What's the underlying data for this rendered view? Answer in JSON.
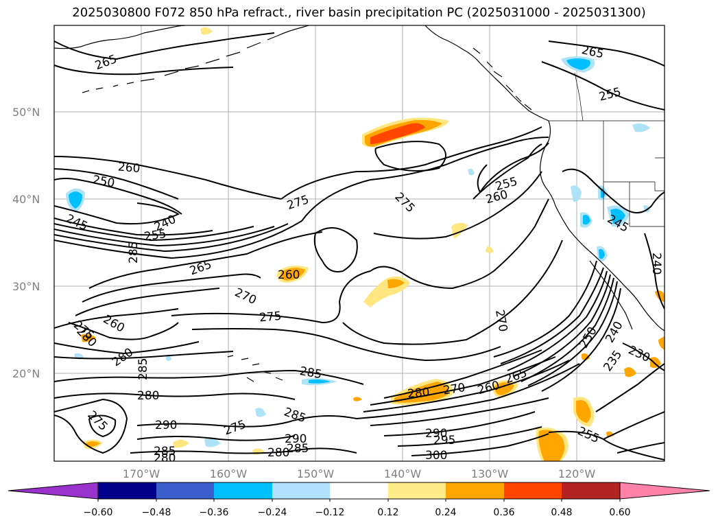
{
  "title": "2025030800 F072 850 hPa refract., river basin precipitation PC (2025031000 - 2025031300)",
  "map": {
    "lat_labels": [
      "50°N",
      "40°N",
      "30°N",
      "20°N"
    ],
    "lon_labels": [
      "170°W",
      "160°W",
      "150°W",
      "140°W",
      "130°W",
      "120°W"
    ],
    "contour_labels": [
      {
        "text": "265"
      },
      {
        "text": "265"
      },
      {
        "text": "255"
      },
      {
        "text": "260"
      },
      {
        "text": "250"
      },
      {
        "text": "245"
      },
      {
        "text": "240"
      },
      {
        "text": "255"
      },
      {
        "text": "275"
      },
      {
        "text": "275"
      },
      {
        "text": "255"
      },
      {
        "text": "260"
      },
      {
        "text": "245"
      },
      {
        "text": "285"
      },
      {
        "text": "265"
      },
      {
        "text": "260"
      },
      {
        "text": "270"
      },
      {
        "text": "275"
      },
      {
        "text": "260"
      },
      {
        "text": "280"
      },
      {
        "text": "270"
      },
      {
        "text": "240"
      },
      {
        "text": "250"
      },
      {
        "text": "240"
      },
      {
        "text": "235"
      },
      {
        "text": "230"
      },
      {
        "text": "285"
      },
      {
        "text": "285"
      },
      {
        "text": "280"
      },
      {
        "text": "280"
      },
      {
        "text": "270"
      },
      {
        "text": "265"
      },
      {
        "text": "260"
      },
      {
        "text": "285"
      },
      {
        "text": "275"
      },
      {
        "text": "290"
      },
      {
        "text": "290"
      },
      {
        "text": "285"
      },
      {
        "text": "280"
      },
      {
        "text": "290"
      },
      {
        "text": "295"
      },
      {
        "text": "300"
      },
      {
        "text": "255"
      },
      {
        "text": "275"
      },
      {
        "text": "280"
      },
      {
        "text": "275"
      },
      {
        "text": "285"
      },
      {
        "text": "280"
      }
    ],
    "colors": {
      "strong_negative": "#00bfff",
      "weak_negative": "#aee3f7",
      "weak_positive": "#ffe680",
      "moderate_positive": "#ffa500",
      "strong_positive": "#ff4500"
    }
  },
  "colorbar": {
    "ticks": [
      "−0.60",
      "−0.48",
      "−0.36",
      "−0.24",
      "−0.12",
      "0.12",
      "0.24",
      "0.36",
      "0.48",
      "0.60"
    ],
    "colors": [
      "#9932cc",
      "#00008b",
      "#3a5fcd",
      "#00bfff",
      "#b0e2ff",
      "#ffffff",
      "#ffec8b",
      "#ffa500",
      "#ff4500",
      "#b22222",
      "#ff82ab"
    ]
  }
}
